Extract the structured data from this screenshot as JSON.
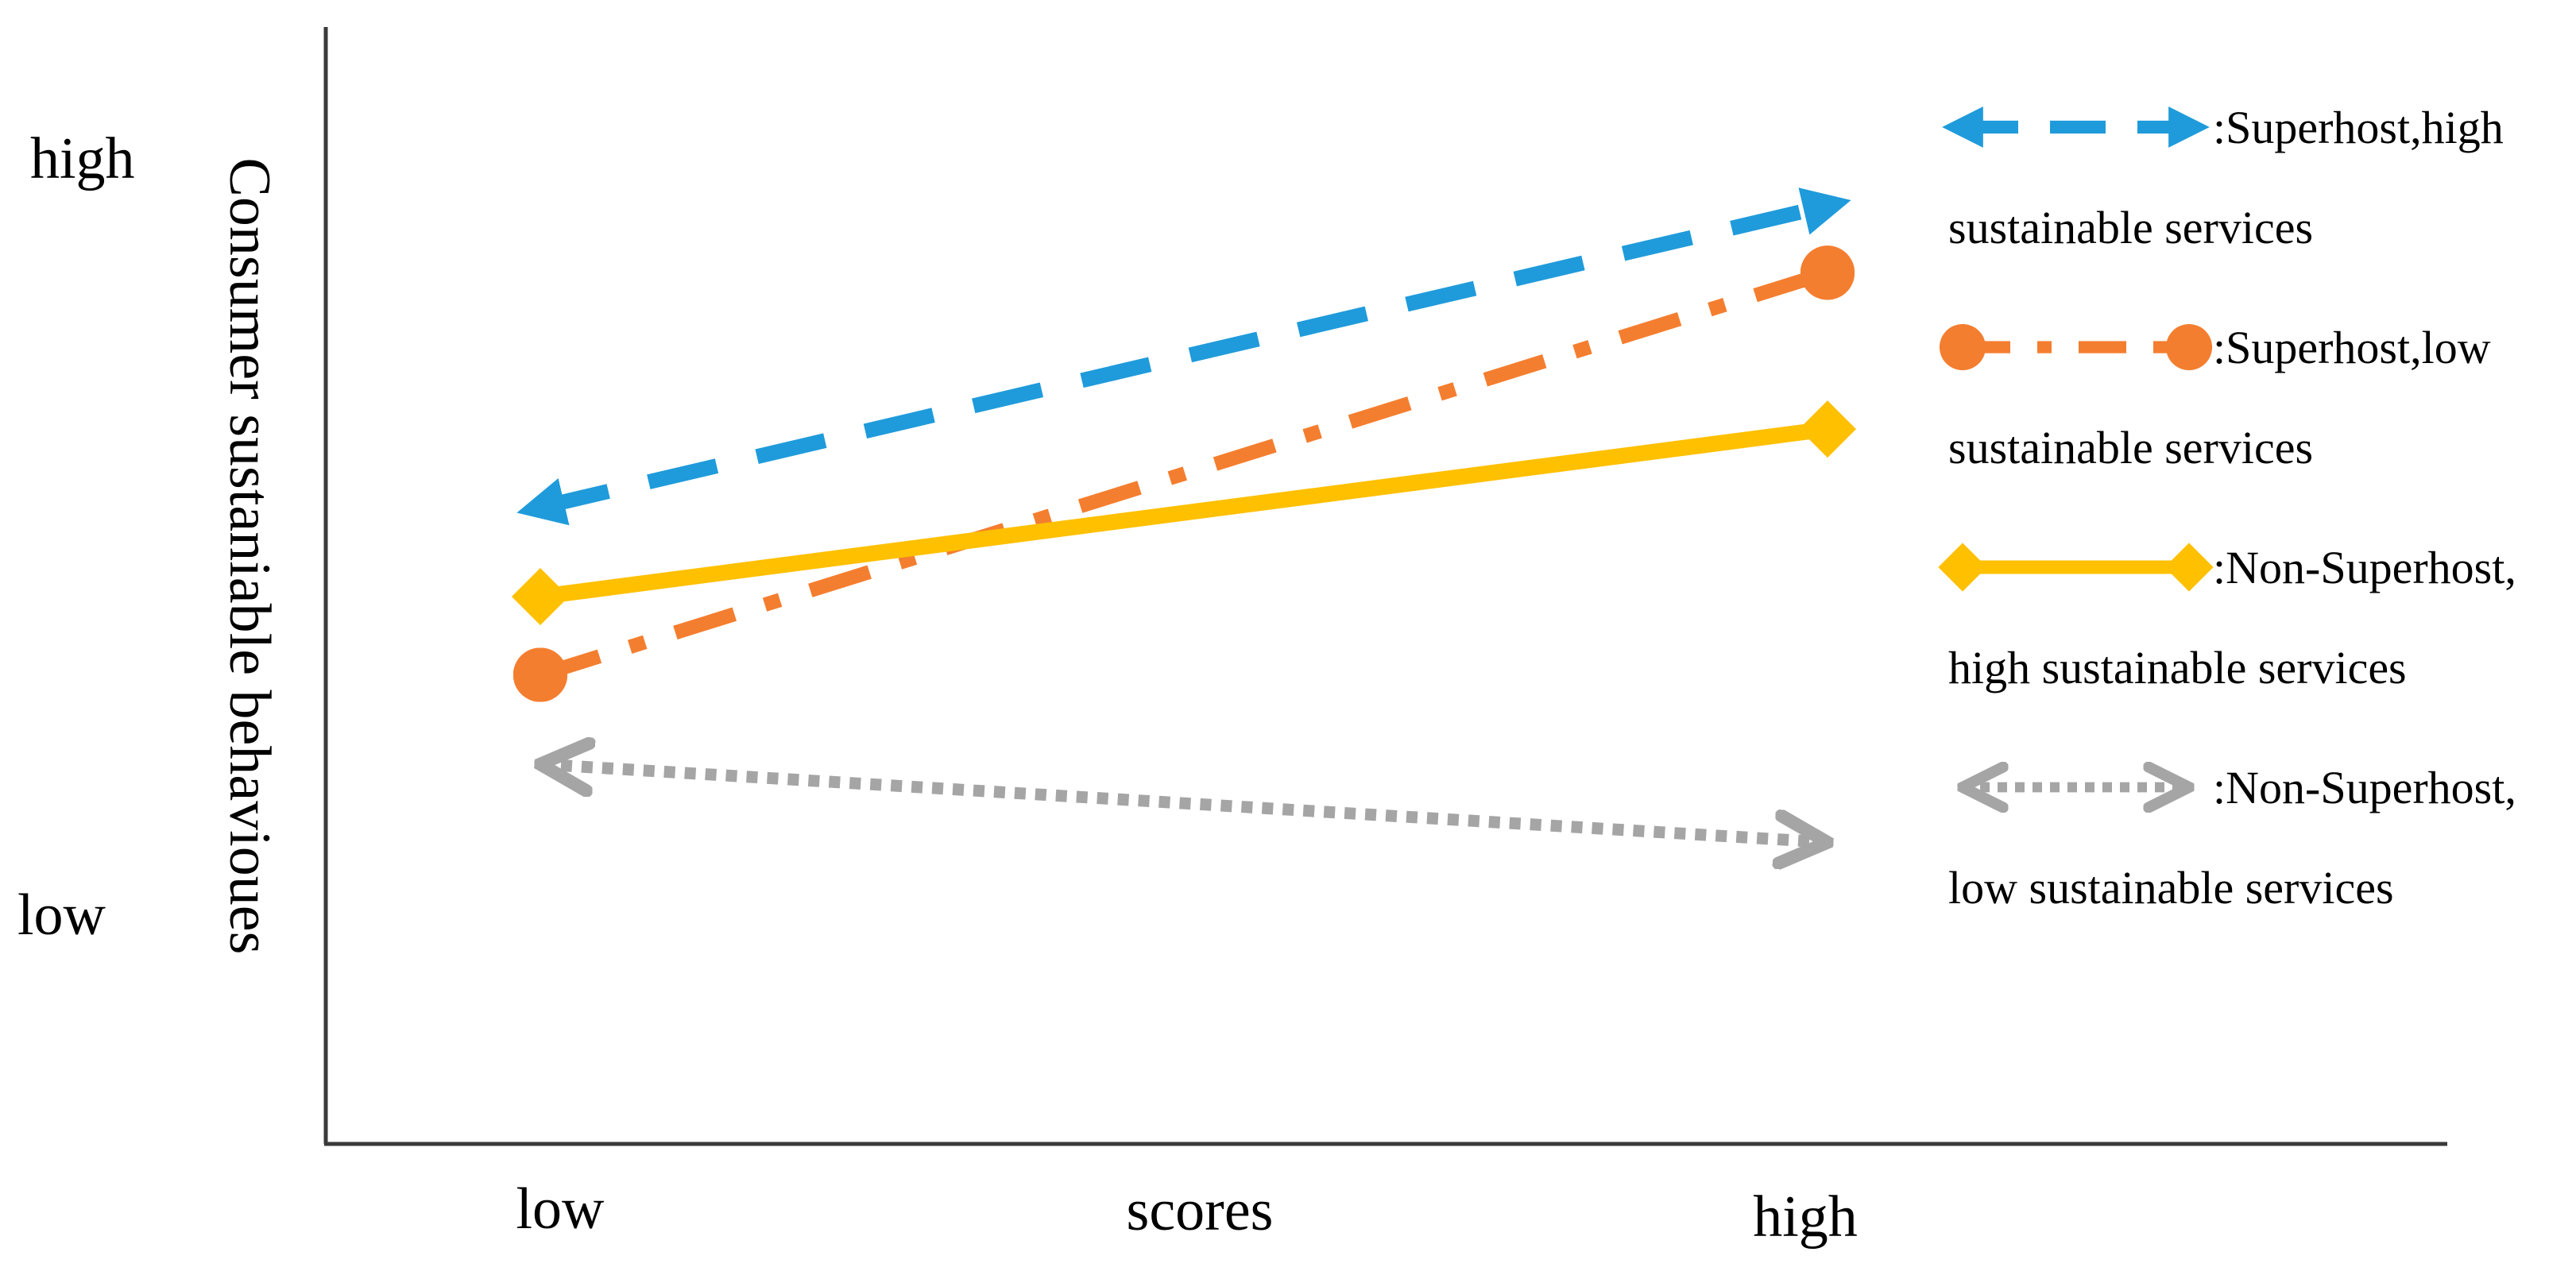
{
  "chart_data": {
    "type": "line",
    "title": "",
    "xlabel": "scores",
    "ylabel": "Consumer sustaniable behavioues",
    "categories": [
      "low",
      "high"
    ],
    "y_tick_labels": [
      "low",
      "high"
    ],
    "ylim": [
      0,
      10
    ],
    "grid": false,
    "legend_position": "right",
    "series": [
      {
        "name": ":Superhost,high sustainable services",
        "legend_lines": [
          ":Superhost,high",
          "sustainable services"
        ],
        "values": [
          5.7,
          8.4
        ],
        "color": "#1F9BDB",
        "line_style": "dashed",
        "marker": "arrow"
      },
      {
        "name": ":Superhost,low sustainable services",
        "legend_lines": [
          ":Superhost,low",
          "sustainable services"
        ],
        "values": [
          4.2,
          7.8
        ],
        "color": "#F47E2F",
        "line_style": "dash-dot",
        "marker": "circle"
      },
      {
        "name": ":Non-Superhost, high sustainable services",
        "legend_lines": [
          ":Non-Superhost,",
          "high sustainable services"
        ],
        "values": [
          4.9,
          6.4
        ],
        "color": "#FFC000",
        "line_style": "solid",
        "marker": "diamond"
      },
      {
        "name": ":Non-Superhost, low sustainable services",
        "legend_lines": [
          ":Non-Superhost,",
          "low sustainable services"
        ],
        "values": [
          3.4,
          2.7
        ],
        "color": "#A5A5A5",
        "line_style": "dotted",
        "marker": "open-arrow"
      }
    ]
  }
}
